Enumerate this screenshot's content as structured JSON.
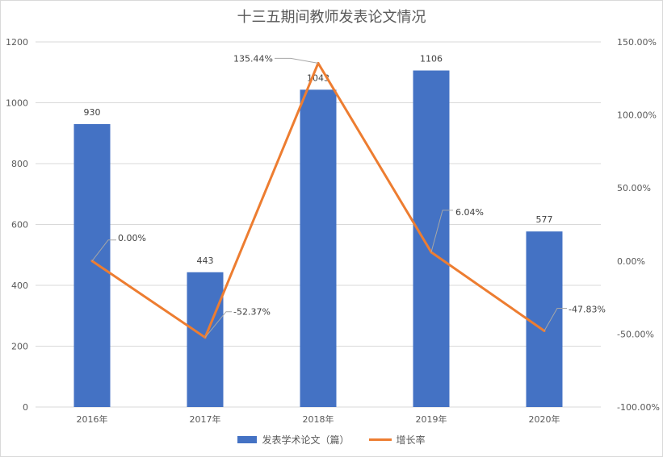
{
  "chart_data": {
    "type": "bar",
    "title": "十三五期间教师发表论文情况",
    "categories": [
      "2016年",
      "2017年",
      "2018年",
      "2019年",
      "2020年"
    ],
    "series": [
      {
        "name": "发表学术论文（篇）",
        "type": "bar",
        "axis": "left",
        "values": [
          930,
          443,
          1043,
          1106,
          577
        ],
        "labels": [
          "930",
          "443",
          "1043",
          "1106",
          "577"
        ],
        "color": "#4472c4"
      },
      {
        "name": "增长率",
        "type": "line",
        "axis": "right",
        "values": [
          0.0,
          -52.37,
          135.44,
          6.04,
          -47.83
        ],
        "labels": [
          "0.00%",
          "-52.37%",
          "135.44%",
          "6.04%",
          "-47.83%"
        ],
        "color": "#ed7d31"
      }
    ],
    "y_left": {
      "min": 0,
      "max": 1200,
      "ticks": [
        "0",
        "200",
        "400",
        "600",
        "800",
        "1000",
        "1200"
      ]
    },
    "y_right": {
      "min": -100,
      "max": 150,
      "ticks": [
        "-100.00%",
        "-50.00%",
        "0.00%",
        "50.00%",
        "100.00%",
        "150.00%"
      ]
    },
    "grid": true,
    "legend_position": "bottom"
  }
}
